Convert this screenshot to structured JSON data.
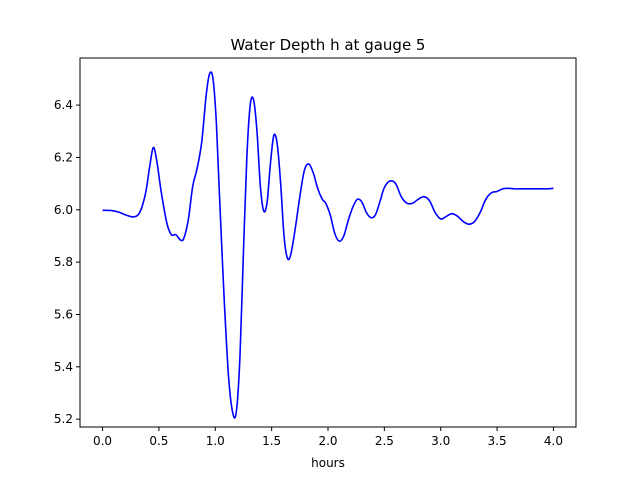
{
  "chart_data": {
    "type": "line",
    "title": "Water Depth h at gauge 5",
    "xlabel": "hours",
    "ylabel": "",
    "xlim": [
      -0.2,
      4.2
    ],
    "ylim": [
      5.17,
      6.58
    ],
    "xticks": [
      0.0,
      0.5,
      1.0,
      1.5,
      2.0,
      2.5,
      3.0,
      3.5,
      4.0
    ],
    "xtick_labels": [
      "0.0",
      "0.5",
      "1.0",
      "1.5",
      "2.0",
      "2.5",
      "3.0",
      "3.5",
      "4.0"
    ],
    "yticks": [
      5.2,
      5.4,
      5.6,
      5.8,
      6.0,
      6.2,
      6.4
    ],
    "ytick_labels": [
      "5.2",
      "5.4",
      "5.6",
      "5.8",
      "6.0",
      "6.2",
      "6.4"
    ],
    "grid": false,
    "series": [
      {
        "color": "#0000ff",
        "x": [
          0.0,
          0.08,
          0.15,
          0.22,
          0.28,
          0.33,
          0.38,
          0.42,
          0.45,
          0.48,
          0.52,
          0.57,
          0.61,
          0.65,
          0.69,
          0.72,
          0.76,
          0.8,
          0.84,
          0.88,
          0.92,
          0.95,
          0.98,
          1.01,
          1.04,
          1.08,
          1.12,
          1.16,
          1.19,
          1.22,
          1.25,
          1.28,
          1.31,
          1.34,
          1.37,
          1.4,
          1.43,
          1.46,
          1.49,
          1.52,
          1.55,
          1.58,
          1.61,
          1.64,
          1.67,
          1.71,
          1.75,
          1.79,
          1.83,
          1.87,
          1.91,
          1.95,
          1.98,
          2.02,
          2.06,
          2.1,
          2.14,
          2.18,
          2.22,
          2.26,
          2.3,
          2.34,
          2.38,
          2.42,
          2.46,
          2.5,
          2.55,
          2.6,
          2.65,
          2.7,
          2.75,
          2.8,
          2.85,
          2.9,
          2.95,
          3.0,
          3.05,
          3.1,
          3.15,
          3.2,
          3.25,
          3.3,
          3.35,
          3.4,
          3.45,
          3.5,
          3.55,
          3.6,
          3.65,
          3.7,
          3.75,
          3.8,
          3.85,
          3.9,
          3.95,
          4.0
        ],
        "y": [
          5.998,
          5.997,
          5.99,
          5.978,
          5.973,
          5.99,
          6.06,
          6.17,
          6.238,
          6.19,
          6.07,
          5.95,
          5.905,
          5.905,
          5.885,
          5.89,
          5.96,
          6.09,
          6.16,
          6.26,
          6.44,
          6.52,
          6.5,
          6.33,
          6.03,
          5.65,
          5.35,
          5.215,
          5.24,
          5.45,
          5.84,
          6.2,
          6.4,
          6.42,
          6.3,
          6.09,
          5.995,
          6.03,
          6.18,
          6.285,
          6.25,
          6.1,
          5.9,
          5.815,
          5.83,
          5.93,
          6.05,
          6.15,
          6.175,
          6.14,
          6.08,
          6.04,
          6.025,
          5.98,
          5.91,
          5.88,
          5.9,
          5.96,
          6.01,
          6.04,
          6.03,
          5.99,
          5.97,
          5.98,
          6.03,
          6.085,
          6.11,
          6.1,
          6.05,
          6.025,
          6.025,
          6.04,
          6.05,
          6.035,
          5.99,
          5.965,
          5.975,
          5.985,
          5.975,
          5.955,
          5.945,
          5.955,
          5.99,
          6.04,
          6.065,
          6.07,
          6.08,
          6.082,
          6.08,
          6.08,
          6.08,
          6.08,
          6.08,
          6.08,
          6.08,
          6.082
        ]
      }
    ]
  }
}
